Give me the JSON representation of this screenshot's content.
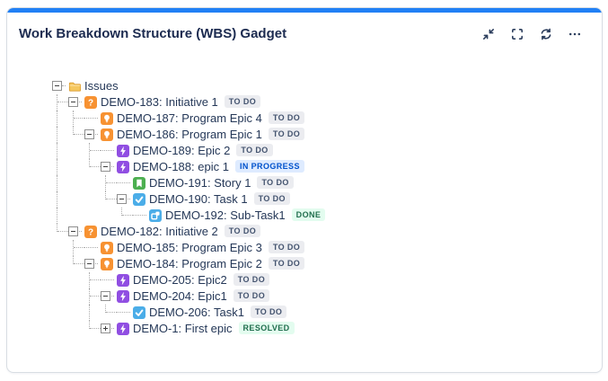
{
  "header": {
    "title": "Work Breakdown Structure (WBS) Gadget",
    "actions": [
      {
        "name": "minimize",
        "icon": "minimize-icon"
      },
      {
        "name": "fullscreen",
        "icon": "fullscreen-icon"
      },
      {
        "name": "refresh",
        "icon": "refresh-icon"
      },
      {
        "name": "more",
        "icon": "more-icon"
      }
    ]
  },
  "colors": {
    "accent": "#2180F5",
    "title": "#1C2B50",
    "icon": "#2C3E5D",
    "text": "#253858",
    "lines": "#ACACAC"
  },
  "icon_colors": {
    "initiative": "#F79232",
    "program-epic": "#F79232",
    "epic": "#904EE2",
    "story": "#4CAF50",
    "task": "#4BADE8",
    "subtask": "#4BADE8"
  },
  "statuses": {
    "TO DO": {
      "bg": "#EBECF0",
      "fg": "#44546F"
    },
    "IN PROGRESS": {
      "bg": "#DEEBFF",
      "fg": "#0052CC"
    },
    "DONE": {
      "bg": "#E3FCEF",
      "fg": "#216E4E"
    },
    "RESOLVED": {
      "bg": "#E3FCEF",
      "fg": "#216E4E"
    }
  },
  "tree": {
    "rows": [
      {
        "label": "Issues",
        "type": "folder",
        "expander": "minus",
        "status": null,
        "cells": []
      },
      {
        "label": "DEMO-183: Initiative 1",
        "type": "initiative",
        "expander": "minus",
        "status": "TO DO",
        "cells": [
          "tee"
        ]
      },
      {
        "label": "DEMO-187: Program Epic 4",
        "type": "program-epic",
        "expander": "leaf",
        "status": "TO DO",
        "cells": [
          "line",
          "tee"
        ]
      },
      {
        "label": "DEMO-186: Program Epic 1",
        "type": "program-epic",
        "expander": "minus",
        "status": "TO DO",
        "cells": [
          "line",
          "corner"
        ]
      },
      {
        "label": "DEMO-189: Epic 2",
        "type": "epic",
        "expander": "leaf",
        "status": "TO DO",
        "cells": [
          "line",
          "blank",
          "tee"
        ]
      },
      {
        "label": "DEMO-188: epic 1",
        "type": "epic",
        "expander": "minus",
        "status": "IN PROGRESS",
        "cells": [
          "line",
          "blank",
          "corner"
        ]
      },
      {
        "label": "DEMO-191: Story 1",
        "type": "story",
        "expander": "leaf",
        "status": "TO DO",
        "cells": [
          "line",
          "blank",
          "blank",
          "tee"
        ]
      },
      {
        "label": "DEMO-190: Task 1",
        "type": "task",
        "expander": "minus",
        "status": "TO DO",
        "cells": [
          "line",
          "blank",
          "blank",
          "corner"
        ]
      },
      {
        "label": "DEMO-192: Sub-Task1",
        "type": "subtask",
        "expander": "leaf",
        "status": "DONE",
        "cells": [
          "line",
          "blank",
          "blank",
          "blank",
          "corner"
        ]
      },
      {
        "label": "DEMO-182: Initiative 2",
        "type": "initiative",
        "expander": "minus",
        "status": "TO DO",
        "cells": [
          "corner"
        ]
      },
      {
        "label": "DEMO-185: Program Epic 3",
        "type": "program-epic",
        "expander": "leaf",
        "status": "TO DO",
        "cells": [
          "blank",
          "tee"
        ]
      },
      {
        "label": "DEMO-184: Program Epic 2",
        "type": "program-epic",
        "expander": "minus",
        "status": "TO DO",
        "cells": [
          "blank",
          "corner"
        ]
      },
      {
        "label": "DEMO-205: Epic2",
        "type": "epic",
        "expander": "leaf",
        "status": "TO DO",
        "cells": [
          "blank",
          "blank",
          "tee"
        ]
      },
      {
        "label": "DEMO-204: Epic1",
        "type": "epic",
        "expander": "minus",
        "status": "TO DO",
        "cells": [
          "blank",
          "blank",
          "tee"
        ]
      },
      {
        "label": "DEMO-206: Task1",
        "type": "task",
        "expander": "leaf",
        "status": "TO DO",
        "cells": [
          "blank",
          "blank",
          "line",
          "corner"
        ]
      },
      {
        "label": "DEMO-1: First epic",
        "type": "epic",
        "expander": "plus",
        "status": "RESOLVED",
        "cells": [
          "blank",
          "blank",
          "corner"
        ]
      }
    ]
  }
}
